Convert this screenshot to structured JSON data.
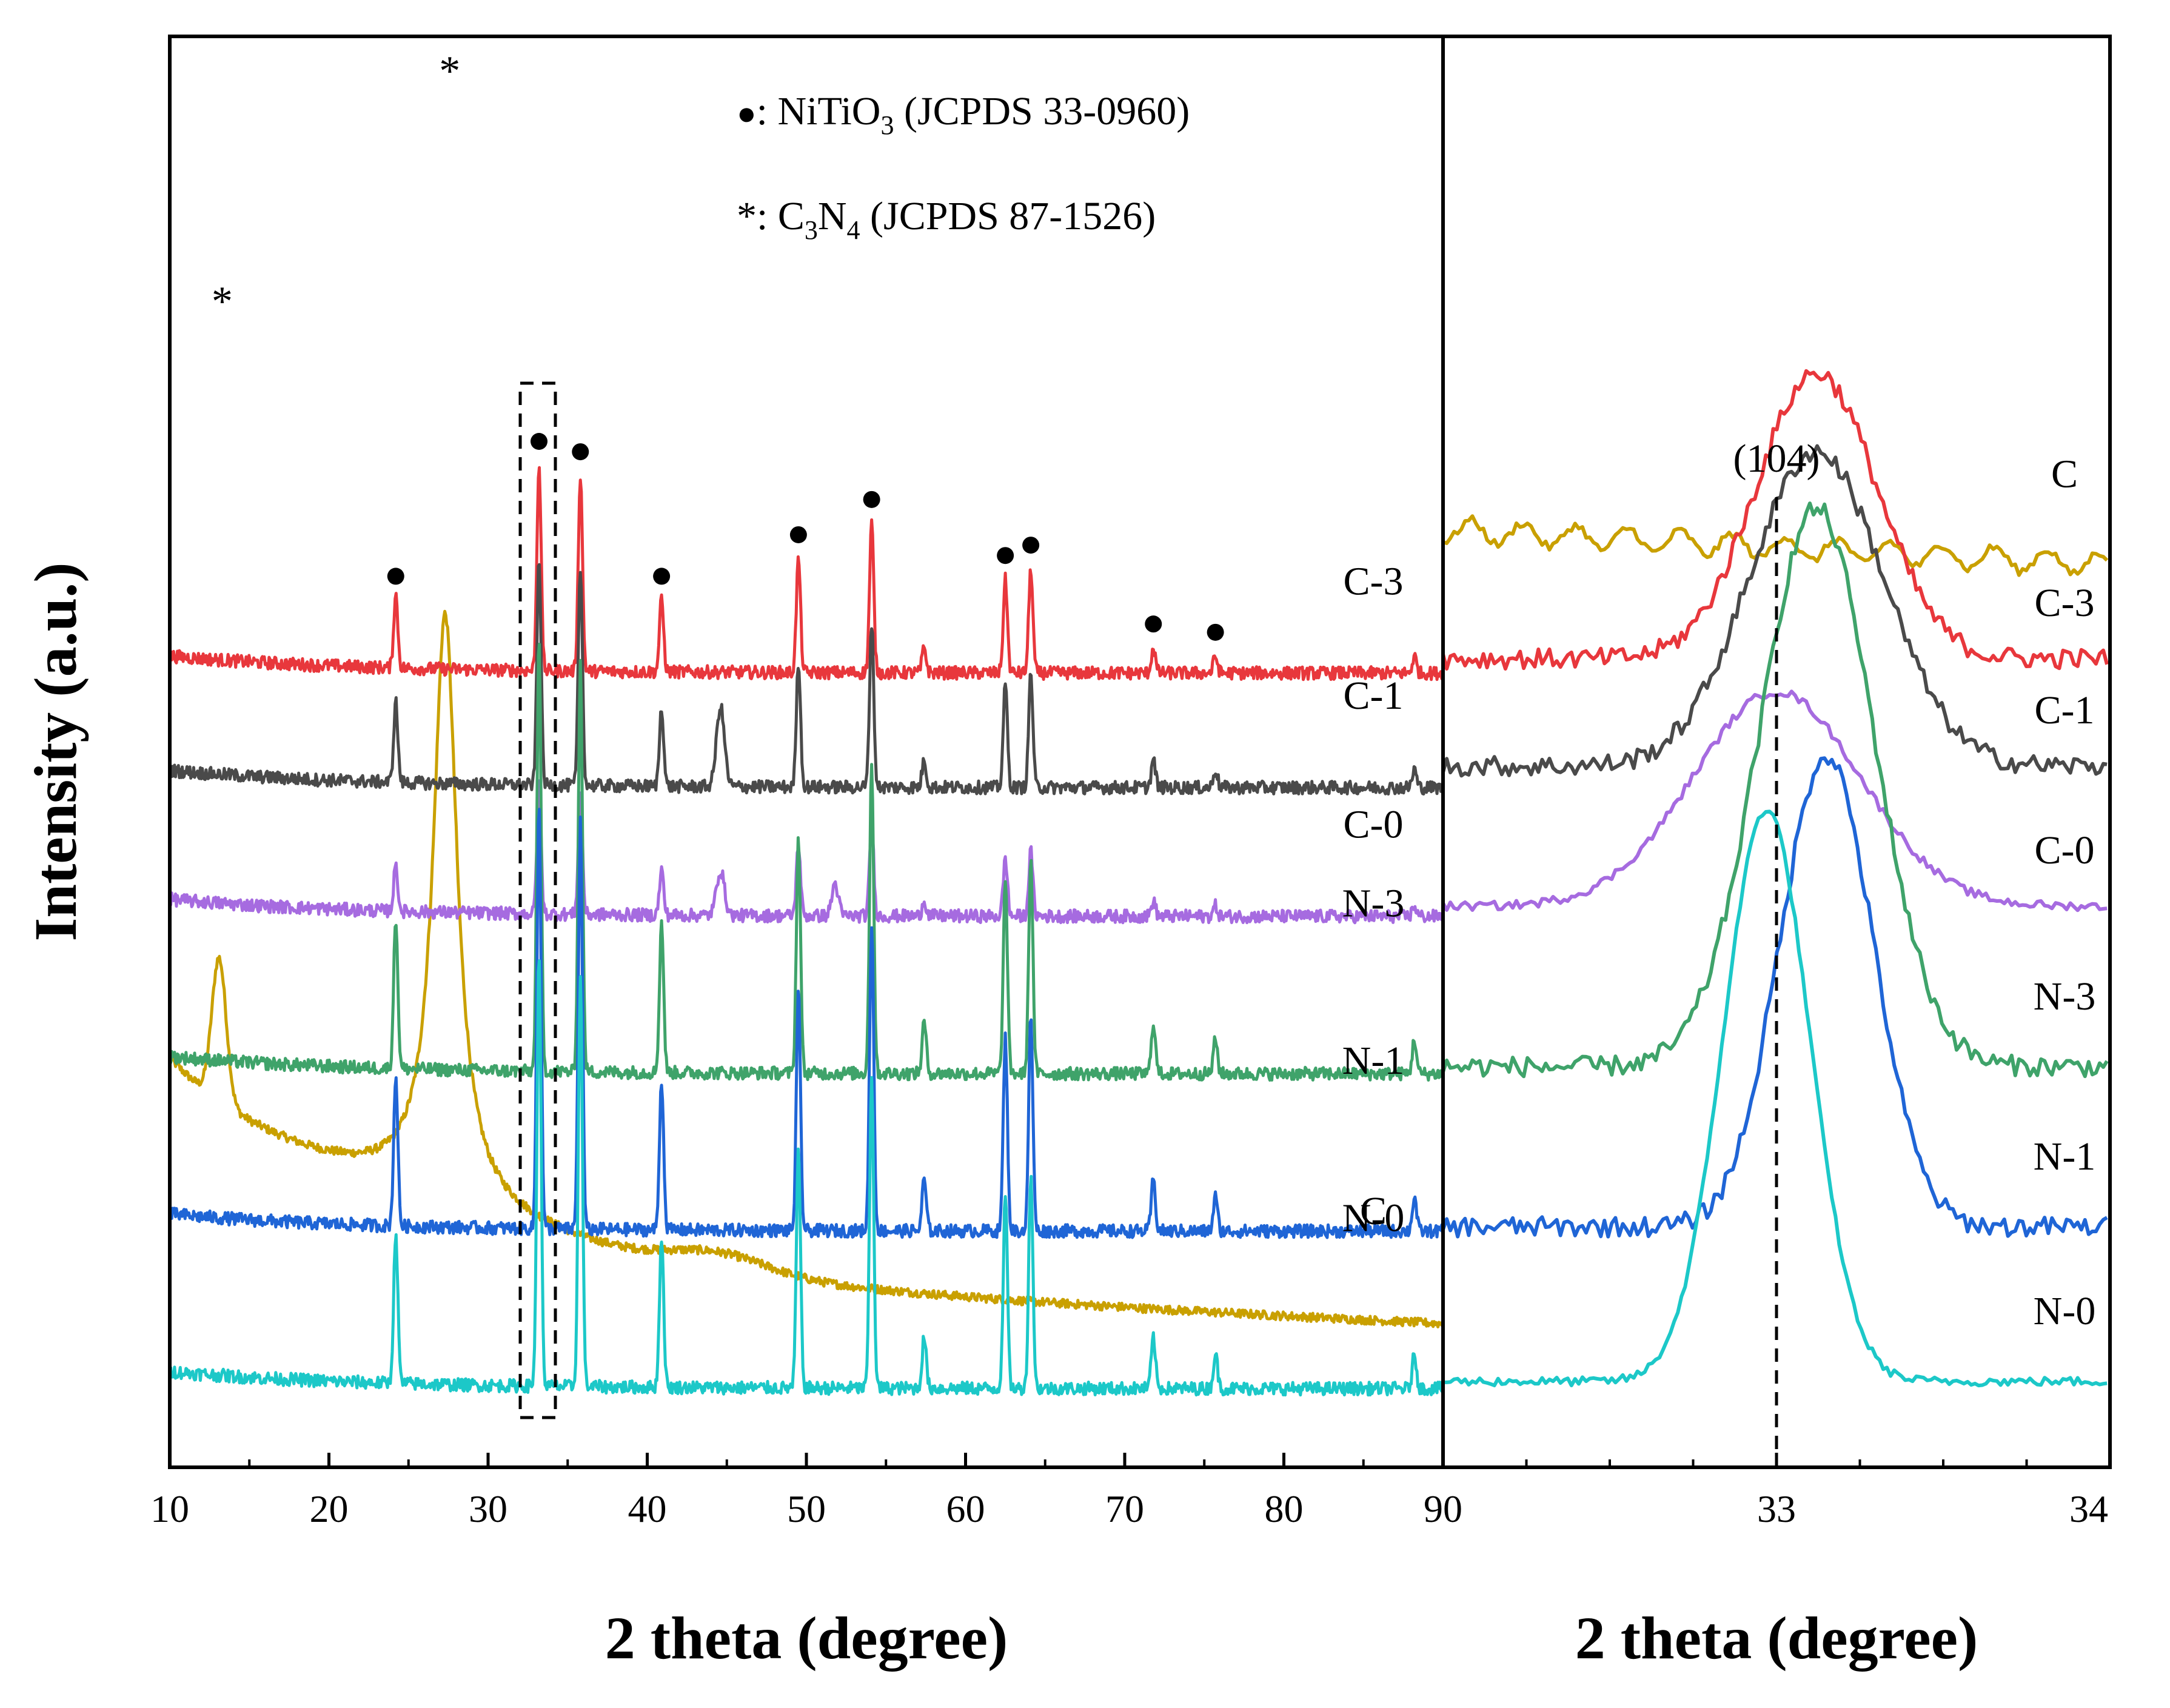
{
  "chart_data": {
    "type": "line",
    "y_axis_label": "Intensity (a.u.)",
    "left_panel": {
      "xlabel": "2 theta (degree)",
      "xlim": [
        10,
        90
      ],
      "xticks": [
        "10",
        "20",
        "30",
        "40",
        "50",
        "60",
        "70",
        "80",
        "90"
      ]
    },
    "right_panel": {
      "xlabel": "2 theta (degree)",
      "xlim": [
        32,
        34
      ],
      "xticks": [
        "33",
        "34"
      ],
      "reference_line_x": 33,
      "reference_label": "(104)"
    },
    "legend": {
      "nitio3": {
        "marker": "●",
        "prefix": ": NiTiO",
        "sub": "3",
        "suffix": " (JCPDS 33-0960)"
      },
      "c3n4": {
        "marker": "*",
        "text": ": C",
        "sub1": "3",
        "mid": "N",
        "sub2": "4",
        "suffix": " (JCPDS 87-1526)"
      }
    },
    "peak_markers": {
      "nitio3_positions": [
        24.2,
        33.2,
        35.8,
        40.9,
        49.5,
        54.1,
        62.5,
        64.1,
        71.8,
        75.7
      ],
      "c3n4_positions": [
        13.1,
        27.4
      ]
    },
    "nitio3_peaks": [
      {
        "x": 24.2,
        "h": 0.35
      },
      {
        "x": 33.2,
        "h": 1.0
      },
      {
        "x": 35.8,
        "h": 0.95
      },
      {
        "x": 40.9,
        "h": 0.35
      },
      {
        "x": 49.5,
        "h": 0.55
      },
      {
        "x": 54.1,
        "h": 0.72
      },
      {
        "x": 57.4,
        "h": 0.12
      },
      {
        "x": 62.5,
        "h": 0.45
      },
      {
        "x": 64.1,
        "h": 0.5
      },
      {
        "x": 71.8,
        "h": 0.12
      },
      {
        "x": 75.7,
        "h": 0.08
      },
      {
        "x": 88.2,
        "h": 0.08
      }
    ],
    "series": [
      {
        "name": "C",
        "color": "#C9A000",
        "left_base": 0.14,
        "peak_scale": 0,
        "right_peak_center": 33,
        "right_peak_height": 0.0,
        "right_peak_width": 0.15,
        "right_base": 0.655
      },
      {
        "name": "C-3",
        "color": "#E8373C",
        "left_base": 0.555,
        "peak_scale": 0.145,
        "right_peak_center": 33.12,
        "right_peak_height": 0.2,
        "right_peak_width": 0.18,
        "right_base": 0.565
      },
      {
        "name": "C-1",
        "color": "#4A4A4A",
        "left_base": 0.475,
        "peak_scale": 0.16,
        "right_peak_center": 33.12,
        "right_peak_height": 0.22,
        "right_peak_width": 0.2,
        "right_base": 0.49
      },
      {
        "name": "C-0",
        "color": "#A66BE0",
        "left_base": 0.385,
        "peak_scale": 0.09,
        "right_peak_center": 33.0,
        "right_peak_height": 0.15,
        "right_peak_width": 0.25,
        "right_base": 0.392
      },
      {
        "name": "N-3",
        "color": "#3FA36A",
        "left_base": 0.275,
        "peak_scale": 0.3,
        "right_peak_center": 33.12,
        "right_peak_height": 0.39,
        "right_peak_width": 0.17,
        "right_base": 0.28
      },
      {
        "name": "N-1",
        "color": "#1F65D6",
        "left_base": 0.165,
        "peak_scale": 0.3,
        "right_peak_center": 33.15,
        "right_peak_height": 0.33,
        "right_peak_width": 0.14,
        "right_base": 0.168
      },
      {
        "name": "N-0",
        "color": "#1CC8C8",
        "left_base": 0.055,
        "peak_scale": 0.3,
        "right_peak_center": 32.97,
        "right_peak_height": 0.4,
        "right_peak_width": 0.13,
        "right_base": 0.06
      }
    ]
  }
}
